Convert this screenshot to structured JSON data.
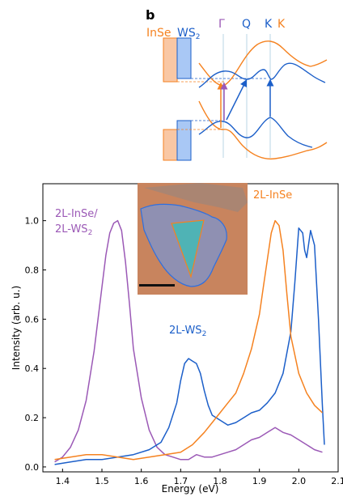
{
  "colors": {
    "insep": "#f58220",
    "ws2": "#1c5fc9",
    "hetero": "#9b59b6",
    "axis": "#000000",
    "inset_bg": "#c8845e",
    "inset_mid": "#a0867a",
    "inset_ws2": "#8f90b2",
    "inset_inse": "#4fb3b5"
  },
  "panel_b": {
    "label": "b",
    "material_1": "InSe",
    "material_2_base": "WS",
    "material_2_sub": "2",
    "points": [
      "Γ",
      "Q",
      "K",
      "K"
    ]
  },
  "chart_data": {
    "type": "line",
    "xlabel": "Energy (eV)",
    "ylabel": "Intensity (arb. u.)",
    "xlim": [
      1.35,
      2.1
    ],
    "ylim": [
      -0.02,
      1.15
    ],
    "xticks": [
      "1.4",
      "1.5",
      "1.6",
      "1.7",
      "1.8",
      "1.9",
      "2.0",
      "2.1"
    ],
    "yticks": [
      "0.0",
      "0.2",
      "0.4",
      "0.6",
      "0.8",
      "1.0"
    ],
    "series": [
      {
        "name": "2L-InSe/2L-WS2",
        "label_line1": "2L-InSe/",
        "label_line2_base": "2L-WS",
        "label_line2_sub": "2",
        "color": "#9b59b6",
        "x": [
          1.38,
          1.4,
          1.42,
          1.44,
          1.46,
          1.48,
          1.5,
          1.51,
          1.52,
          1.53,
          1.54,
          1.55,
          1.56,
          1.57,
          1.58,
          1.6,
          1.62,
          1.64,
          1.66,
          1.68,
          1.7,
          1.72,
          1.74,
          1.76,
          1.78,
          1.8,
          1.82,
          1.84,
          1.86,
          1.88,
          1.9,
          1.92,
          1.94,
          1.96,
          1.98,
          2.0,
          2.02,
          2.04,
          2.06
        ],
        "y": [
          0.02,
          0.04,
          0.08,
          0.15,
          0.27,
          0.47,
          0.73,
          0.86,
          0.95,
          0.99,
          1.0,
          0.96,
          0.83,
          0.66,
          0.48,
          0.28,
          0.15,
          0.08,
          0.05,
          0.04,
          0.03,
          0.03,
          0.05,
          0.04,
          0.04,
          0.05,
          0.06,
          0.07,
          0.09,
          0.11,
          0.12,
          0.14,
          0.16,
          0.14,
          0.13,
          0.11,
          0.09,
          0.07,
          0.06
        ]
      },
      {
        "name": "2L-WS2",
        "label_base": "2L-WS",
        "label_sub": "2",
        "color": "#1c5fc9",
        "x": [
          1.38,
          1.42,
          1.46,
          1.5,
          1.54,
          1.58,
          1.62,
          1.65,
          1.67,
          1.69,
          1.7,
          1.71,
          1.72,
          1.73,
          1.74,
          1.75,
          1.76,
          1.77,
          1.78,
          1.8,
          1.82,
          1.84,
          1.86,
          1.88,
          1.9,
          1.92,
          1.94,
          1.96,
          1.98,
          1.99,
          2.0,
          2.01,
          2.015,
          2.02,
          2.03,
          2.04,
          2.05,
          2.06,
          2.065
        ],
        "y": [
          0.01,
          0.02,
          0.03,
          0.03,
          0.04,
          0.05,
          0.07,
          0.1,
          0.16,
          0.26,
          0.35,
          0.42,
          0.44,
          0.43,
          0.42,
          0.38,
          0.31,
          0.25,
          0.21,
          0.19,
          0.17,
          0.18,
          0.2,
          0.22,
          0.23,
          0.26,
          0.3,
          0.38,
          0.55,
          0.75,
          0.97,
          0.95,
          0.88,
          0.85,
          0.96,
          0.9,
          0.6,
          0.25,
          0.09
        ]
      },
      {
        "name": "2L-InSe",
        "label": "2L-InSe",
        "color": "#f58220",
        "x": [
          1.38,
          1.42,
          1.46,
          1.5,
          1.54,
          1.58,
          1.62,
          1.66,
          1.7,
          1.73,
          1.76,
          1.78,
          1.8,
          1.82,
          1.84,
          1.86,
          1.88,
          1.9,
          1.91,
          1.92,
          1.93,
          1.94,
          1.95,
          1.96,
          1.97,
          1.98,
          2.0,
          2.02,
          2.04,
          2.06
        ],
        "y": [
          0.03,
          0.04,
          0.05,
          0.05,
          0.04,
          0.03,
          0.04,
          0.05,
          0.06,
          0.09,
          0.14,
          0.18,
          0.22,
          0.26,
          0.3,
          0.38,
          0.48,
          0.62,
          0.73,
          0.84,
          0.95,
          1.0,
          0.98,
          0.88,
          0.7,
          0.53,
          0.38,
          0.3,
          0.25,
          0.22
        ]
      }
    ]
  }
}
